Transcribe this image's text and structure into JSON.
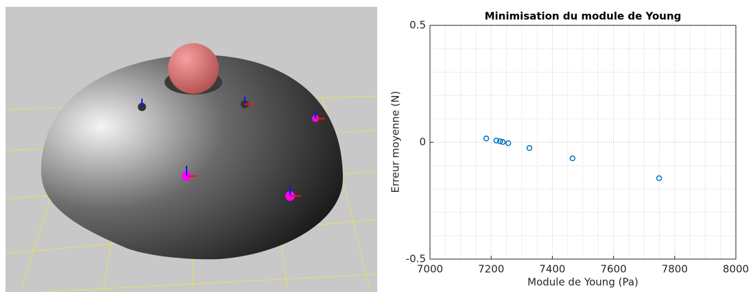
{
  "chart_data": {
    "type": "scatter",
    "title": "Minimisation du module de Young",
    "xlabel": "Module de Young (Pa)",
    "ylabel": "Erreur moyenne (N)",
    "series": [
      {
        "name": null,
        "color": "#0072bd",
        "x": [
          7184,
          7217,
          7229,
          7238,
          7256,
          7325,
          7466,
          7749
        ],
        "values": [
          0.016,
          0.007,
          0.004,
          0.001,
          -0.004,
          -0.025,
          -0.069,
          -0.154
        ]
      }
    ],
    "xlim": [
      7000,
      8000
    ],
    "xticks": [
      7000,
      7200,
      7400,
      7600,
      7800,
      8000
    ],
    "ylim": [
      -0.5,
      0.5
    ],
    "yticks": [
      -0.5,
      0,
      0.5
    ],
    "xminor": [
      7050,
      7100,
      7150,
      7250,
      7300,
      7350,
      7450,
      7500,
      7550,
      7650,
      7700,
      7750,
      7850,
      7900,
      7950
    ],
    "yminor": [
      -0.4,
      -0.3,
      -0.2,
      -0.1,
      0.1,
      0.2,
      0.3,
      0.4
    ],
    "grid": true
  }
}
